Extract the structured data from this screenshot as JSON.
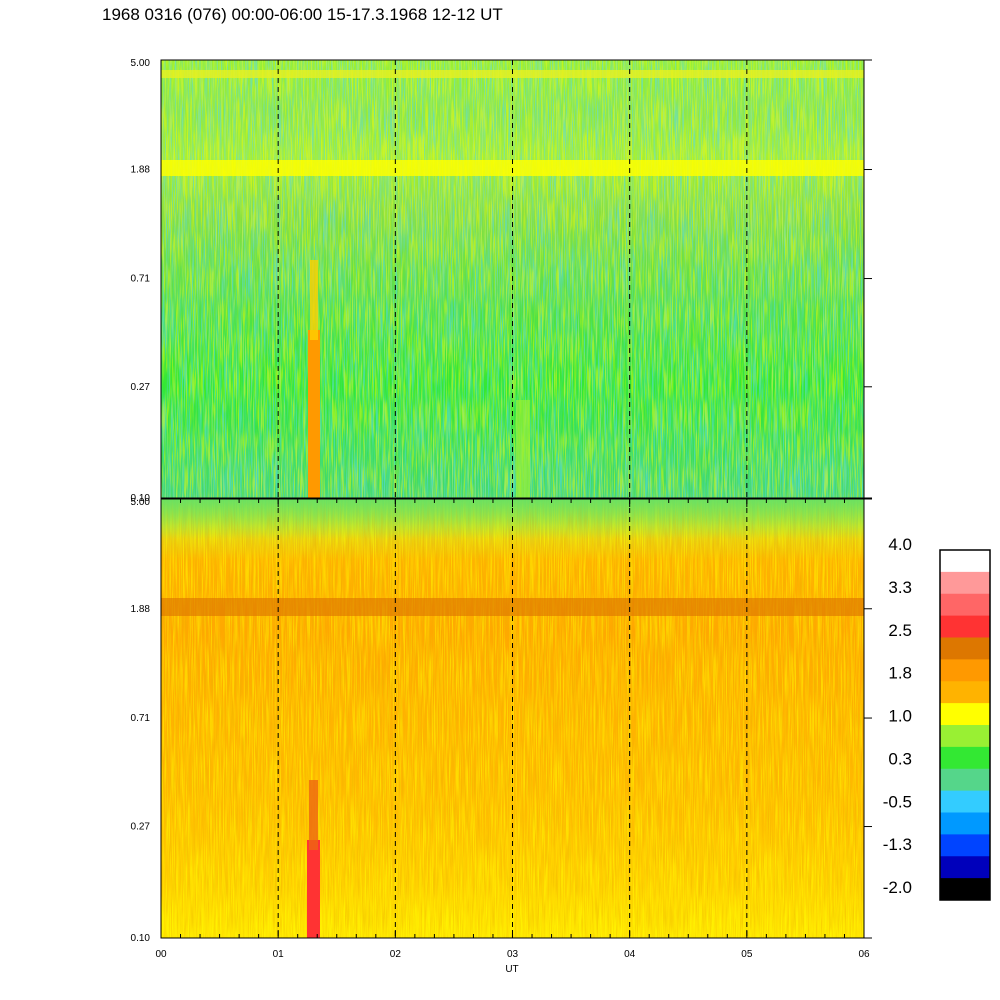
{
  "title": "1968 0316 (076) 00:00-06:00 15-17.3.1968  12-12 UT",
  "chart_data": [
    {
      "type": "heatmap",
      "panel": "upper",
      "x_ticks": [
        "00",
        "01",
        "02",
        "03",
        "04",
        "05",
        "06"
      ],
      "y_ticks": [
        "0.10",
        "0.27",
        "0.71",
        "1.88",
        "5.00"
      ],
      "y_scale": "log",
      "xlim": [
        0,
        6
      ],
      "ylim": [
        0.1,
        5.0
      ],
      "dominant_colors": [
        "#33e833",
        "#55d68a",
        "#99f033",
        "#ffff00"
      ],
      "features": [
        {
          "label": "bright band",
          "y": 1.88,
          "color": "#ffff00"
        },
        {
          "label": "enhancement",
          "x": [
            1.28,
            1.38
          ],
          "y": [
            0.1,
            0.6
          ],
          "color": "#ff9900"
        }
      ]
    },
    {
      "type": "heatmap",
      "panel": "lower",
      "x_ticks": [
        "00",
        "01",
        "02",
        "03",
        "04",
        "05",
        "06"
      ],
      "y_ticks": [
        "0.10",
        "0.27",
        "0.71",
        "1.88",
        "5.00"
      ],
      "y_scale": "log",
      "xlim": [
        0,
        6
      ],
      "ylim": [
        0.1,
        5.0
      ],
      "xlabel": "UT",
      "dominant_colors": [
        "#ffb300",
        "#ff9900",
        "#ffff00",
        "#33e833"
      ],
      "features": [
        {
          "label": "dark band",
          "y": 1.88,
          "color": "#dd7700"
        },
        {
          "label": "enhancement",
          "x": [
            1.28,
            1.38
          ],
          "y": [
            0.1,
            0.45
          ],
          "color": "#ff3333"
        }
      ]
    }
  ],
  "colorbar": {
    "labels": [
      "4.0",
      "3.3",
      "2.5",
      "1.8",
      "1.0",
      "0.3",
      "-0.5",
      "-1.3",
      "-2.0"
    ],
    "colors": [
      "#ffffff",
      "#ff9999",
      "#ff6666",
      "#ff3333",
      "#dd7700",
      "#ff9900",
      "#ffb300",
      "#ffff00",
      "#99f033",
      "#33e833",
      "#55d68a",
      "#33ccff",
      "#0099ff",
      "#0044ff",
      "#0000bb",
      "#000000"
    ]
  }
}
